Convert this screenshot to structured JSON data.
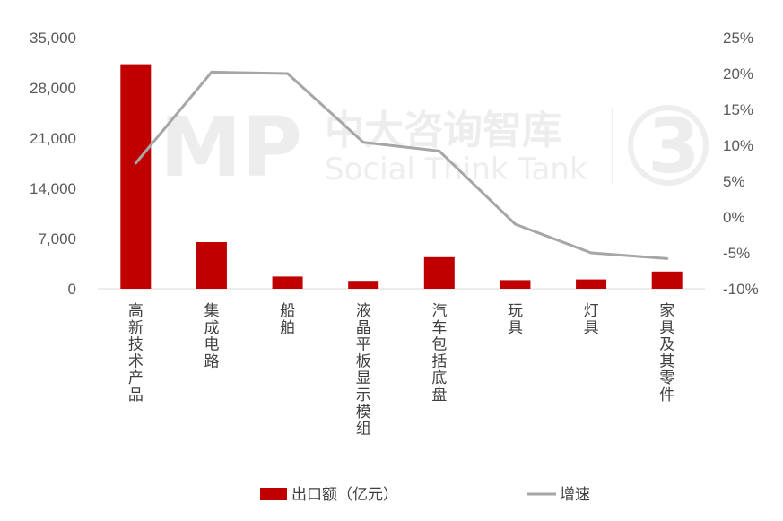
{
  "chart_data": {
    "type": "bar+line",
    "categories": [
      "高新技术产品",
      "集成电路",
      "船舶",
      "液晶平板显示模组",
      "汽车包括底盘",
      "玩具",
      "灯具",
      "家具及其零件"
    ],
    "series": [
      {
        "name": "出口额（亿元）",
        "type": "bar",
        "axis": "left",
        "color": "#C00000",
        "values": [
          31300,
          6500,
          1700,
          1100,
          4400,
          1200,
          1300,
          2400
        ]
      },
      {
        "name": "增速",
        "type": "line",
        "axis": "right",
        "color": "#A6A6A6",
        "values": [
          7.5,
          20.2,
          20.0,
          10.4,
          9.2,
          -1.0,
          -5.0,
          -5.8
        ]
      }
    ],
    "y_left": {
      "ylim": [
        0,
        35000
      ],
      "ticks": [
        "0",
        "7,000",
        "14,000",
        "21,000",
        "28,000",
        "35,000"
      ]
    },
    "y_right": {
      "ylim": [
        -10,
        25
      ],
      "ticks": [
        "-10%",
        "-5%",
        "0%",
        "5%",
        "10%",
        "15%",
        "20%",
        "25%"
      ]
    },
    "legend_placement": "bottom",
    "grid": false
  },
  "watermark": {
    "logo": "MP",
    "text_cn": "中大咨询智库",
    "text_en": "Social Think Tank",
    "badge": "3"
  }
}
